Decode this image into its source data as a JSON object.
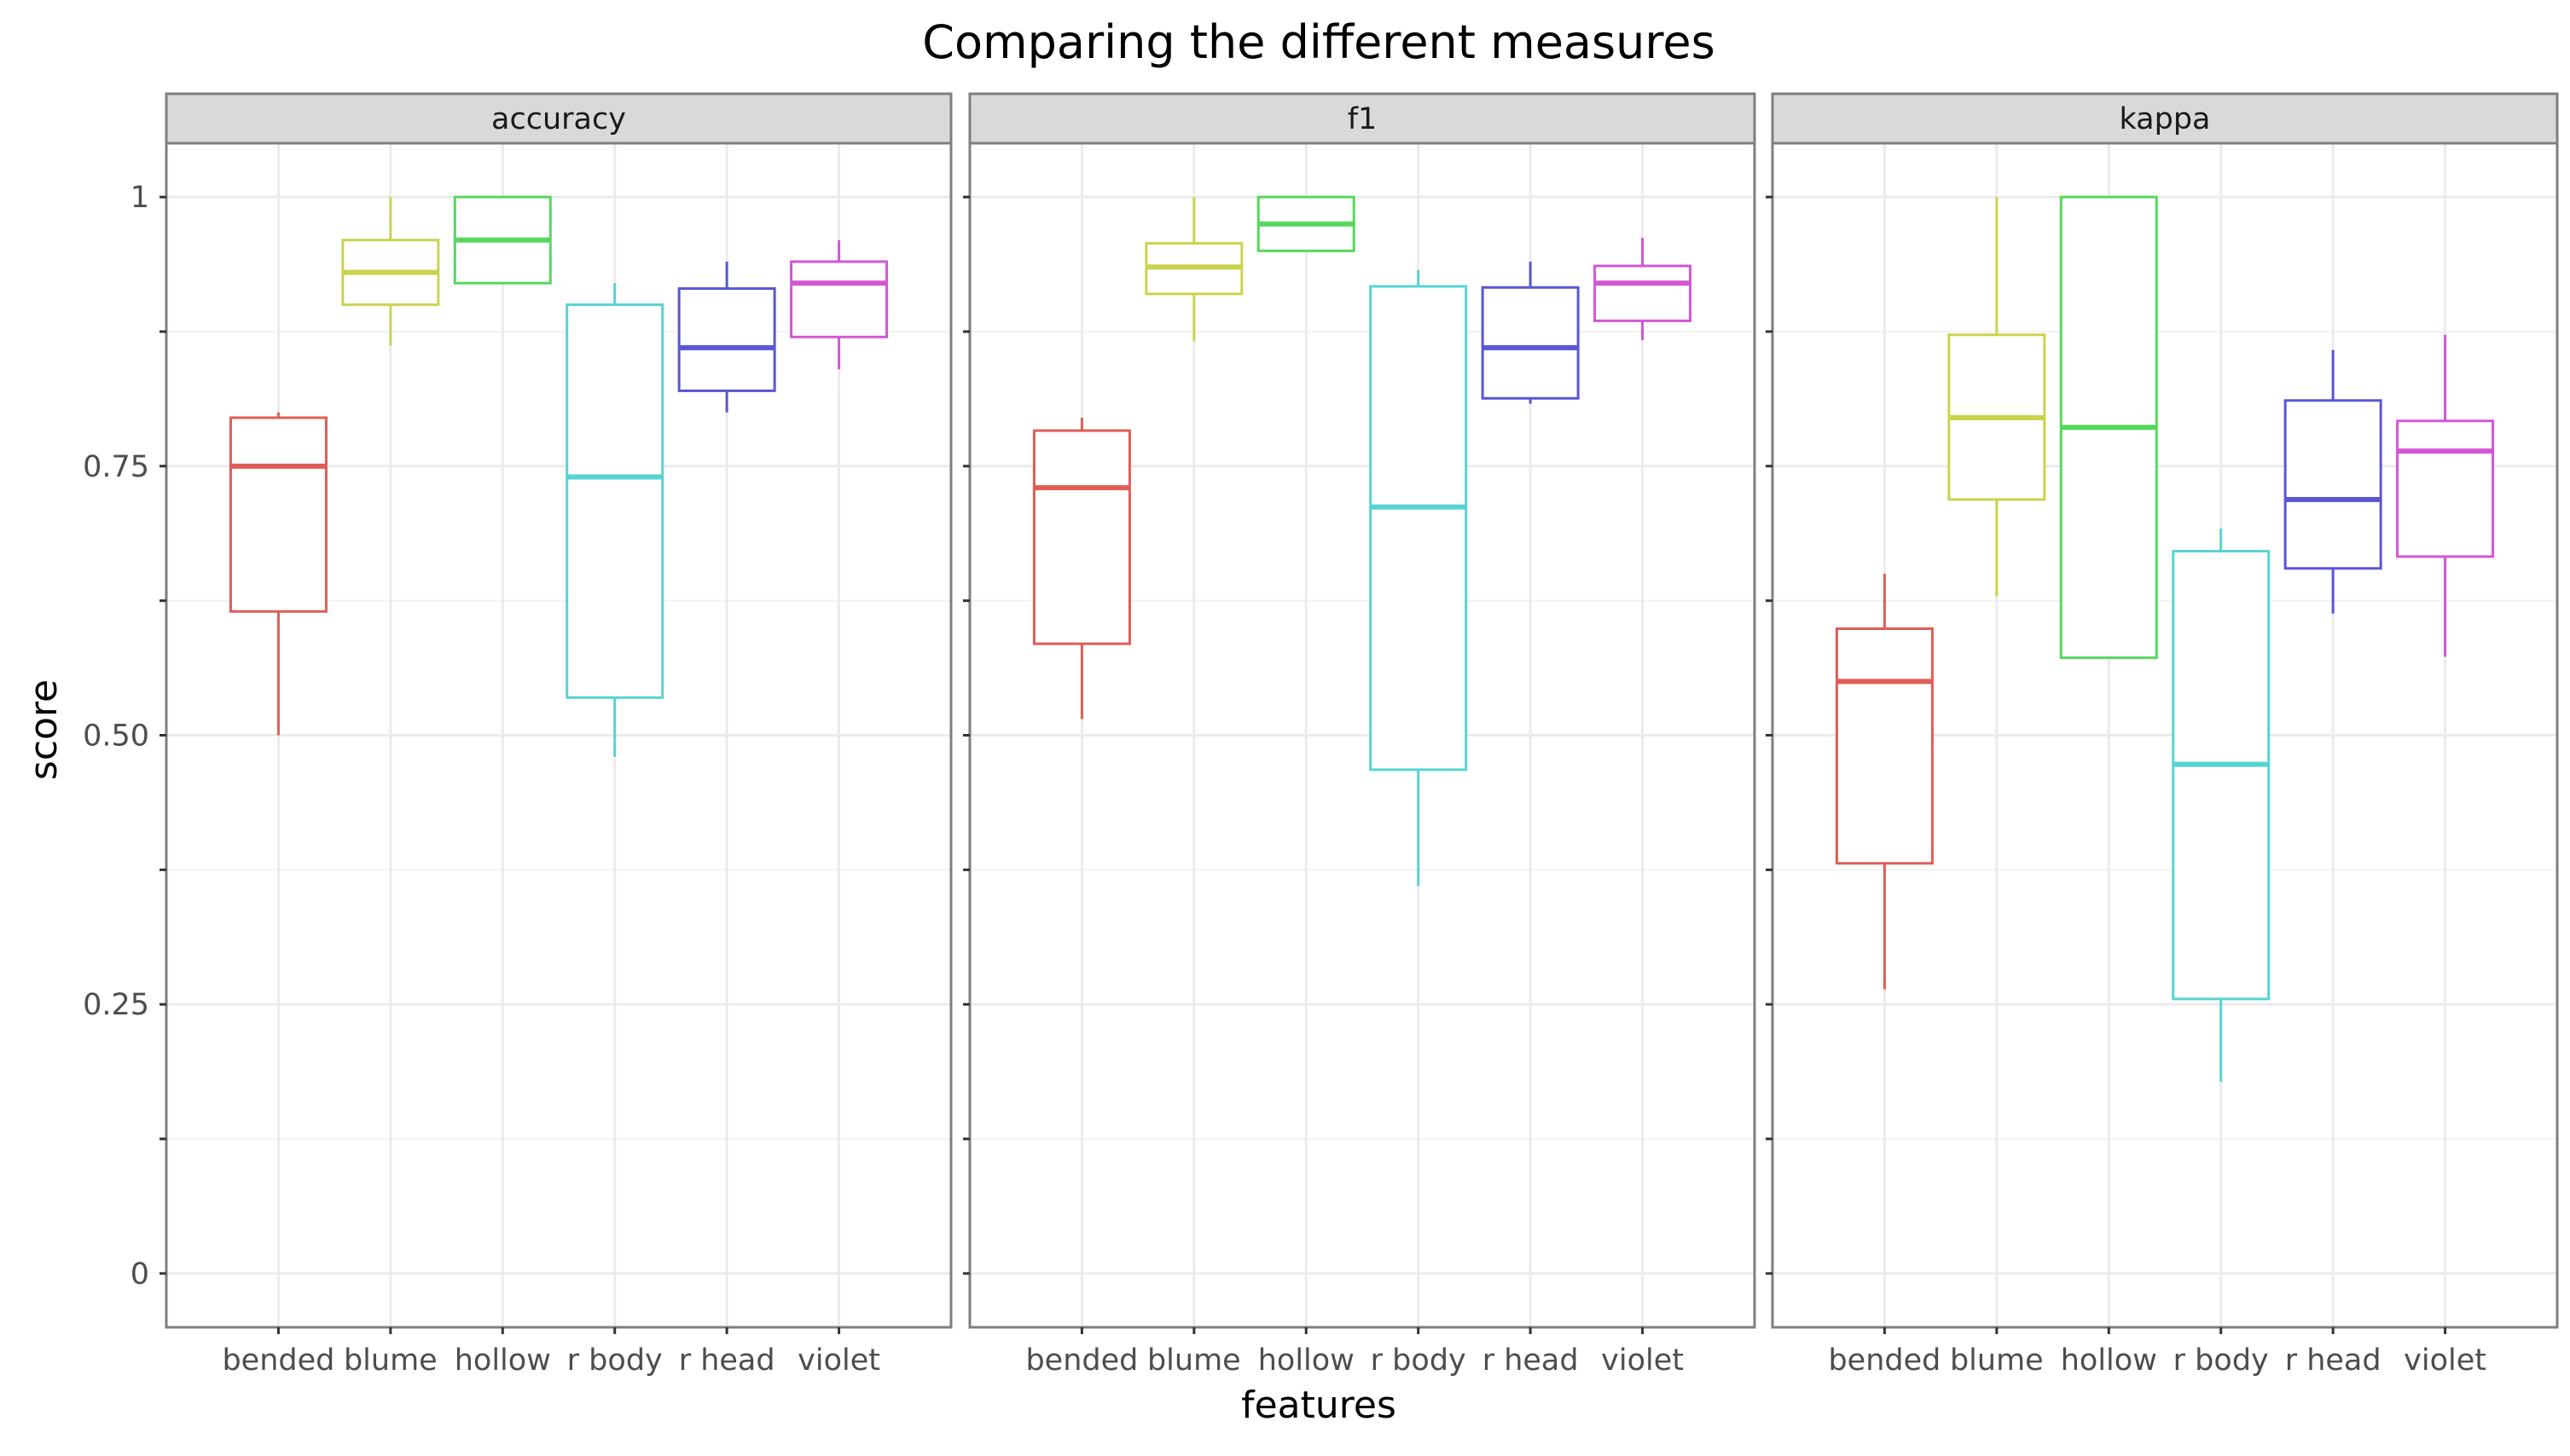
{
  "chart_data": {
    "type": "boxplot",
    "title": "Comparing the different measures",
    "xlabel": "features",
    "ylabel": "score",
    "ylim": [
      -0.05,
      1.05
    ],
    "yticks": [
      {
        "value": 0,
        "label": "0"
      },
      {
        "value": 0.25,
        "label": "0.25"
      },
      {
        "value": 0.5,
        "label": "0.50"
      },
      {
        "value": 0.75,
        "label": "0.75"
      },
      {
        "value": 1,
        "label": "1"
      }
    ],
    "categories": [
      "bended",
      "blume",
      "hollow",
      "r body",
      "r head",
      "violet"
    ],
    "colors": {
      "bended": "#e05d56",
      "blume": "#c9d44d",
      "hollow": "#56d85e",
      "r body": "#56d4d4",
      "r head": "#5a56d4",
      "violet": "#d456d4"
    },
    "grid": true,
    "legend": "none",
    "facets": [
      {
        "label": "accuracy",
        "boxes": [
          {
            "category": "bended",
            "lower_whisker": 0.5,
            "q1": 0.615,
            "median": 0.75,
            "q3": 0.795,
            "upper_whisker": 0.8
          },
          {
            "category": "blume",
            "lower_whisker": 0.862,
            "q1": 0.9,
            "median": 0.93,
            "q3": 0.96,
            "upper_whisker": 1.0
          },
          {
            "category": "hollow",
            "lower_whisker": 0.92,
            "q1": 0.92,
            "median": 0.96,
            "q3": 1.0,
            "upper_whisker": 1.0
          },
          {
            "category": "r body",
            "lower_whisker": 0.48,
            "q1": 0.535,
            "median": 0.74,
            "q3": 0.9,
            "upper_whisker": 0.92
          },
          {
            "category": "r head",
            "lower_whisker": 0.8,
            "q1": 0.82,
            "median": 0.86,
            "q3": 0.915,
            "upper_whisker": 0.94
          },
          {
            "category": "violet",
            "lower_whisker": 0.84,
            "q1": 0.87,
            "median": 0.92,
            "q3": 0.94,
            "upper_whisker": 0.96
          }
        ]
      },
      {
        "label": "f1",
        "boxes": [
          {
            "category": "bended",
            "lower_whisker": 0.515,
            "q1": 0.585,
            "median": 0.73,
            "q3": 0.783,
            "upper_whisker": 0.795
          },
          {
            "category": "blume",
            "lower_whisker": 0.866,
            "q1": 0.91,
            "median": 0.935,
            "q3": 0.957,
            "upper_whisker": 1.0
          },
          {
            "category": "hollow",
            "lower_whisker": 0.95,
            "q1": 0.95,
            "median": 0.975,
            "q3": 1.0,
            "upper_whisker": 1.0
          },
          {
            "category": "r body",
            "lower_whisker": 0.36,
            "q1": 0.468,
            "median": 0.712,
            "q3": 0.917,
            "upper_whisker": 0.932
          },
          {
            "category": "r head",
            "lower_whisker": 0.808,
            "q1": 0.813,
            "median": 0.86,
            "q3": 0.916,
            "upper_whisker": 0.94
          },
          {
            "category": "violet",
            "lower_whisker": 0.867,
            "q1": 0.885,
            "median": 0.92,
            "q3": 0.936,
            "upper_whisker": 0.962
          }
        ]
      },
      {
        "label": "kappa",
        "boxes": [
          {
            "category": "bended",
            "lower_whisker": 0.264,
            "q1": 0.381,
            "median": 0.55,
            "q3": 0.599,
            "upper_whisker": 0.65
          },
          {
            "category": "blume",
            "lower_whisker": 0.629,
            "q1": 0.719,
            "median": 0.795,
            "q3": 0.872,
            "upper_whisker": 1.0
          },
          {
            "category": "hollow",
            "lower_whisker": 0.572,
            "q1": 0.572,
            "median": 0.786,
            "q3": 1.0,
            "upper_whisker": 1.0
          },
          {
            "category": "r body",
            "lower_whisker": 0.178,
            "q1": 0.255,
            "median": 0.473,
            "q3": 0.671,
            "upper_whisker": 0.692
          },
          {
            "category": "r head",
            "lower_whisker": 0.613,
            "q1": 0.655,
            "median": 0.719,
            "q3": 0.811,
            "upper_whisker": 0.858
          },
          {
            "category": "violet",
            "lower_whisker": 0.573,
            "q1": 0.666,
            "median": 0.764,
            "q3": 0.792,
            "upper_whisker": 0.872
          }
        ]
      }
    ]
  }
}
